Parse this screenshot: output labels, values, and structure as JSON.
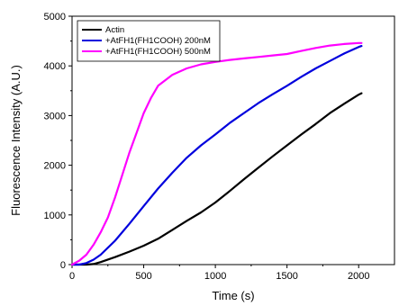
{
  "chart_data": {
    "type": "line",
    "xlabel": "Time (s)",
    "ylabel": "Fluorescence Intensity (A.U.)",
    "xlim": [
      0,
      2250
    ],
    "ylim": [
      0,
      5000
    ],
    "xticks": [
      0,
      500,
      1000,
      1500,
      2000
    ],
    "yticks": [
      0,
      1000,
      2000,
      3000,
      4000,
      5000
    ],
    "x_tick_labels": [
      "0",
      "500",
      "1000",
      "1500",
      "2000"
    ],
    "y_tick_labels": [
      "0",
      "1000",
      "2000",
      "3000",
      "4000",
      "5000"
    ],
    "grid": false,
    "legend_position": "top-left",
    "series": [
      {
        "name": "Actin",
        "color": "#000000",
        "x": [
          0,
          100,
          150,
          200,
          300,
          400,
          500,
          600,
          700,
          800,
          900,
          1000,
          1100,
          1200,
          1300,
          1400,
          1500,
          1600,
          1700,
          1800,
          1900,
          2000,
          2020
        ],
        "y": [
          0,
          0,
          10,
          50,
          150,
          260,
          380,
          520,
          700,
          880,
          1050,
          1250,
          1480,
          1720,
          1950,
          2180,
          2400,
          2620,
          2830,
          3050,
          3240,
          3420,
          3450
        ]
      },
      {
        "name": "+AtFH1(FH1COOH) 200nM",
        "color": "#0000dd",
        "x": [
          0,
          50,
          100,
          150,
          200,
          300,
          400,
          500,
          600,
          700,
          800,
          900,
          1000,
          1100,
          1200,
          1300,
          1400,
          1500,
          1600,
          1700,
          1800,
          1900,
          2000,
          2020
        ],
        "y": [
          0,
          0,
          30,
          100,
          200,
          480,
          820,
          1180,
          1530,
          1850,
          2150,
          2400,
          2620,
          2850,
          3050,
          3250,
          3430,
          3600,
          3780,
          3950,
          4100,
          4250,
          4380,
          4400
        ]
      },
      {
        "name": "+AtFH1(FH1COOH) 500nM",
        "color": "#ff00ff",
        "x": [
          0,
          50,
          100,
          150,
          200,
          250,
          300,
          350,
          400,
          450,
          500,
          550,
          600,
          700,
          800,
          900,
          1000,
          1100,
          1200,
          1300,
          1400,
          1500,
          1600,
          1700,
          1800,
          1900,
          2000,
          2020
        ],
        "y": [
          0,
          80,
          200,
          400,
          650,
          950,
          1350,
          1800,
          2250,
          2650,
          3050,
          3350,
          3600,
          3820,
          3950,
          4030,
          4080,
          4120,
          4150,
          4180,
          4210,
          4240,
          4300,
          4360,
          4410,
          4440,
          4460,
          4460
        ]
      }
    ]
  }
}
